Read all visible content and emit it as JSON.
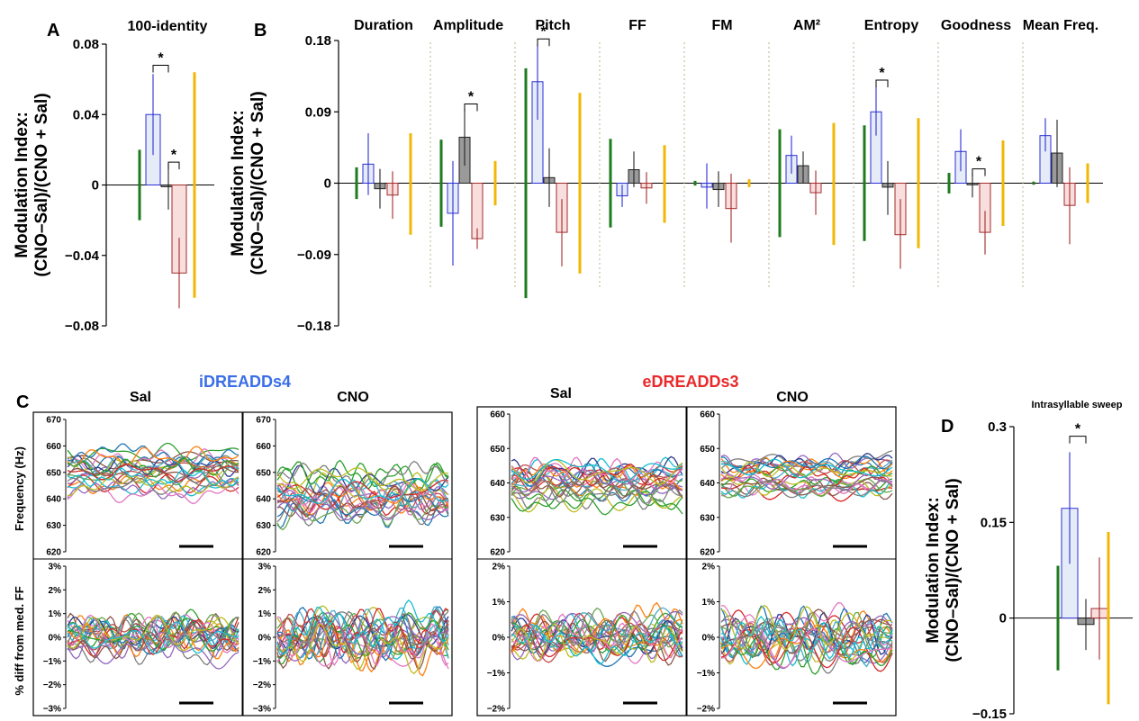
{
  "panel_labels": {
    "a": "A",
    "b": "B",
    "c": "C",
    "d": "D"
  },
  "colors": {
    "green": "#1e7b1e",
    "blue": "#2b2fd6",
    "blue_fill": "#e6ebf8",
    "gray": "#9a9a9a",
    "red": "#a32b2b",
    "red_fill": "#f9dede",
    "gold": "#f2b705",
    "ilabel": "#3a6ee8",
    "elabel": "#e82a2a"
  },
  "panel_c": {
    "i_title": "iDREADDs4",
    "e_title": "eDREADDs3",
    "sal": "Sal",
    "cno": "CNO",
    "row1_ylabel": "Frequency (Hz)",
    "row2_ylabel": "% diff from med. FF"
  },
  "chart_data": [
    {
      "id": "A",
      "type": "bar",
      "title": "100-identity",
      "ylabel": "Modulation Index:\n(CNO–Sal)/(CNO + Sal)",
      "ylim": [
        -0.08,
        0.08
      ],
      "ticks": [
        0.08,
        0.04,
        0,
        -0.04,
        -0.08
      ],
      "tick_labels": [
        "0.08",
        "0.04",
        "0",
        "−0.04",
        "−0.08"
      ],
      "groups": [
        {
          "name": "100-identity",
          "bars": [
            {
              "style": "green",
              "value": 0,
              "lo": -0.02,
              "hi": 0.02
            },
            {
              "style": "blue",
              "value": 0.04,
              "lo": 0.017,
              "hi": 0.063
            },
            {
              "style": "gray",
              "value": -0.001,
              "lo": -0.014,
              "hi": 0.012
            },
            {
              "style": "red",
              "value": -0.05,
              "lo": -0.07,
              "hi": -0.03
            },
            {
              "style": "gold",
              "value": 0,
              "lo": -0.064,
              "hi": 0.064
            }
          ],
          "sig": [
            {
              "from": 1,
              "to": 2,
              "h": 0.068
            },
            {
              "from": 2,
              "to": 3,
              "h": 0.013
            }
          ]
        }
      ]
    },
    {
      "id": "B",
      "type": "bar",
      "ylabel": "Modulation Index:\n(CNO–Sal)/(CNO + Sal)",
      "ylim": [
        -0.18,
        0.18
      ],
      "ticks": [
        0.18,
        0.09,
        0,
        -0.09,
        -0.18
      ],
      "tick_labels": [
        "0.18",
        "0.09",
        "0",
        "−0.09",
        "−0.18"
      ],
      "groups": [
        {
          "name": "Duration",
          "bars": [
            {
              "style": "green",
              "value": 0,
              "lo": -0.02,
              "hi": 0.02
            },
            {
              "style": "blue",
              "value": 0.024,
              "lo": -0.015,
              "hi": 0.063
            },
            {
              "style": "gray",
              "value": -0.007,
              "lo": -0.032,
              "hi": 0.018
            },
            {
              "style": "red",
              "value": -0.015,
              "lo": -0.045,
              "hi": 0.015
            },
            {
              "style": "gold",
              "value": 0,
              "lo": -0.065,
              "hi": 0.063
            }
          ],
          "sig": []
        },
        {
          "name": "Amplitude",
          "bars": [
            {
              "style": "green",
              "value": 0,
              "lo": -0.055,
              "hi": 0.055
            },
            {
              "style": "blue",
              "value": -0.038,
              "lo": -0.104,
              "hi": 0.028
            },
            {
              "style": "gray",
              "value": 0.058,
              "lo": 0.022,
              "hi": 0.094
            },
            {
              "style": "red",
              "value": -0.07,
              "lo": -0.083,
              "hi": -0.057
            },
            {
              "style": "gold",
              "value": 0,
              "lo": -0.028,
              "hi": 0.028
            }
          ],
          "sig": [
            {
              "from": 2,
              "to": 3,
              "h": 0.1
            }
          ]
        },
        {
          "name": "Pitch",
          "bars": [
            {
              "style": "green",
              "value": 0,
              "lo": -0.145,
              "hi": 0.145
            },
            {
              "style": "blue",
              "value": 0.128,
              "lo": 0.08,
              "hi": 0.175
            },
            {
              "style": "gray",
              "value": 0.007,
              "lo": -0.03,
              "hi": 0.044
            },
            {
              "style": "red",
              "value": -0.062,
              "lo": -0.105,
              "hi": -0.02
            },
            {
              "style": "gold",
              "value": 0,
              "lo": -0.114,
              "hi": 0.114
            }
          ],
          "sig": [
            {
              "from": 1,
              "to": 2,
              "h": 0.182
            }
          ]
        },
        {
          "name": "FF",
          "bars": [
            {
              "style": "green",
              "value": 0,
              "lo": -0.056,
              "hi": 0.056
            },
            {
              "style": "blue",
              "value": -0.016,
              "lo": -0.03,
              "hi": -0.002
            },
            {
              "style": "gray",
              "value": 0.017,
              "lo": -0.005,
              "hi": 0.04
            },
            {
              "style": "red",
              "value": -0.006,
              "lo": -0.026,
              "hi": 0.014
            },
            {
              "style": "gold",
              "value": 0,
              "lo": -0.05,
              "hi": 0.048
            }
          ],
          "sig": []
        },
        {
          "name": "FM",
          "bars": [
            {
              "style": "green",
              "value": 0,
              "lo": -0.003,
              "hi": 0.003
            },
            {
              "style": "blue",
              "value": -0.005,
              "lo": -0.032,
              "hi": 0.025
            },
            {
              "style": "gray",
              "value": -0.008,
              "lo": -0.03,
              "hi": 0.015
            },
            {
              "style": "red",
              "value": -0.032,
              "lo": -0.075,
              "hi": 0.012
            },
            {
              "style": "gold",
              "value": 0,
              "lo": -0.005,
              "hi": 0.005
            }
          ],
          "sig": []
        },
        {
          "name": "AM²",
          "bars": [
            {
              "style": "green",
              "value": 0,
              "lo": -0.068,
              "hi": 0.068
            },
            {
              "style": "blue",
              "value": 0.035,
              "lo": 0.012,
              "hi": 0.06
            },
            {
              "style": "gray",
              "value": 0.022,
              "lo": 0.0,
              "hi": 0.04
            },
            {
              "style": "red",
              "value": -0.012,
              "lo": -0.04,
              "hi": 0.016
            },
            {
              "style": "gold",
              "value": 0,
              "lo": -0.078,
              "hi": 0.076
            }
          ],
          "sig": []
        },
        {
          "name": "Entropy",
          "bars": [
            {
              "style": "green",
              "value": 0,
              "lo": -0.073,
              "hi": 0.073
            },
            {
              "style": "blue",
              "value": 0.09,
              "lo": 0.06,
              "hi": 0.122
            },
            {
              "style": "gray",
              "value": -0.005,
              "lo": -0.04,
              "hi": 0.028
            },
            {
              "style": "red",
              "value": -0.065,
              "lo": -0.108,
              "hi": -0.02
            },
            {
              "style": "gold",
              "value": 0,
              "lo": -0.082,
              "hi": 0.082
            }
          ],
          "sig": [
            {
              "from": 1,
              "to": 2,
              "h": 0.13
            }
          ]
        },
        {
          "name": "Goodness",
          "bars": [
            {
              "style": "green",
              "value": 0,
              "lo": -0.013,
              "hi": 0.013
            },
            {
              "style": "blue",
              "value": 0.04,
              "lo": 0.015,
              "hi": 0.068
            },
            {
              "style": "gray",
              "value": -0.002,
              "lo": -0.018,
              "hi": 0.012
            },
            {
              "style": "red",
              "value": -0.062,
              "lo": -0.09,
              "hi": -0.035
            },
            {
              "style": "gold",
              "value": 0,
              "lo": -0.054,
              "hi": 0.054
            }
          ],
          "sig": [
            {
              "from": 2,
              "to": 3,
              "h": 0.018
            }
          ]
        },
        {
          "name": "Mean Freq.",
          "bars": [
            {
              "style": "green",
              "value": 0,
              "lo": -0.002,
              "hi": 0.002
            },
            {
              "style": "blue",
              "value": 0.06,
              "lo": 0.04,
              "hi": 0.082
            },
            {
              "style": "gray",
              "value": 0.038,
              "lo": -0.005,
              "hi": 0.08
            },
            {
              "style": "red",
              "value": -0.028,
              "lo": -0.077,
              "hi": 0.02
            },
            {
              "style": "gold",
              "value": 0,
              "lo": -0.025,
              "hi": 0.025
            }
          ],
          "sig": []
        }
      ]
    },
    {
      "id": "D",
      "type": "bar",
      "title": "Intrasyllable sweep",
      "ylabel": "Modulation Index:\n(CNO–Sal)/(CNO + Sal)",
      "ylim": [
        -0.15,
        0.3
      ],
      "ticks": [
        0.3,
        0.15,
        0,
        -0.15
      ],
      "tick_labels": [
        "0.3",
        "0.15",
        "0",
        "−0.15"
      ],
      "groups": [
        {
          "name": "Intrasyllable sweep",
          "bars": [
            {
              "style": "green",
              "value": 0,
              "lo": -0.082,
              "hi": 0.082
            },
            {
              "style": "blue",
              "value": 0.172,
              "lo": 0.085,
              "hi": 0.26
            },
            {
              "style": "gray",
              "value": -0.01,
              "lo": -0.05,
              "hi": 0.03
            },
            {
              "style": "red",
              "value": 0.015,
              "lo": -0.065,
              "hi": 0.095
            },
            {
              "style": "gold",
              "value": 0,
              "lo": -0.135,
              "hi": 0.135
            }
          ],
          "sig": [
            {
              "from": 1,
              "to": 2,
              "h": 0.285
            }
          ]
        }
      ]
    },
    {
      "id": "C-i-sal-freq",
      "type": "line",
      "title": "Sal",
      "ylim": [
        620,
        670
      ],
      "ticks": [
        670,
        660,
        650,
        640,
        630,
        620
      ],
      "tick_labels": [
        "670",
        "660",
        "650",
        "640",
        "630",
        "620"
      ],
      "trace_center": 650,
      "trace_spread": 8,
      "trace_amp": 4,
      "n_traces": 24,
      "seed": 11
    },
    {
      "id": "C-i-cno-freq",
      "type": "line",
      "title": "CNO",
      "ylim": [
        620,
        670
      ],
      "ticks": [
        670,
        660,
        650,
        640,
        630,
        620
      ],
      "tick_labels": [
        "670",
        "660",
        "650",
        "640",
        "630",
        "620"
      ],
      "trace_center": 641,
      "trace_spread": 9,
      "trace_amp": 6,
      "n_traces": 24,
      "seed": 23
    },
    {
      "id": "C-i-sal-pct",
      "type": "line",
      "ylim": [
        -3,
        3
      ],
      "ticks": [
        3,
        2,
        1,
        0,
        -1,
        -2,
        -3
      ],
      "tick_labels": [
        "3%",
        "2%",
        "1%",
        "0%",
        "−1%",
        "−2%",
        "−3%"
      ],
      "trace_center": 0,
      "trace_spread": 0.35,
      "trace_amp": 0.8,
      "n_traces": 24,
      "seed": 37
    },
    {
      "id": "C-i-cno-pct",
      "type": "line",
      "ylim": [
        -3,
        3
      ],
      "ticks": [
        3,
        2,
        1,
        0,
        -1,
        -2,
        -3
      ],
      "tick_labels": [
        "3%",
        "2%",
        "1%",
        "0%",
        "−1%",
        "−2%",
        "−3%"
      ],
      "trace_center": 0,
      "trace_spread": 0.4,
      "trace_amp": 1.1,
      "n_traces": 24,
      "seed": 41
    },
    {
      "id": "C-e-sal-freq",
      "type": "line",
      "title": "Sal",
      "ylim": [
        620,
        660
      ],
      "ticks": [
        660,
        650,
        640,
        630,
        620
      ],
      "tick_labels": [
        "660",
        "650",
        "640",
        "630",
        "620"
      ],
      "trace_center": 640,
      "trace_spread": 5,
      "trace_amp": 4,
      "n_traces": 24,
      "seed": 53
    },
    {
      "id": "C-e-cno-freq",
      "type": "line",
      "title": "CNO",
      "ylim": [
        620,
        660
      ],
      "ticks": [
        660,
        650,
        640,
        630,
        620
      ],
      "tick_labels": [
        "660",
        "650",
        "640",
        "630",
        "620"
      ],
      "trace_center": 642,
      "trace_spread": 4,
      "trace_amp": 3,
      "n_traces": 24,
      "seed": 67
    },
    {
      "id": "C-e-sal-pct",
      "type": "line",
      "ylim": [
        -2,
        2
      ],
      "ticks": [
        2,
        1,
        0,
        -1,
        -2
      ],
      "tick_labels": [
        "2%",
        "1%",
        "0%",
        "−1%",
        "−2%"
      ],
      "trace_center": 0,
      "trace_spread": 0.35,
      "trace_amp": 0.6,
      "n_traces": 24,
      "seed": 71
    },
    {
      "id": "C-e-cno-pct",
      "type": "line",
      "ylim": [
        -2,
        2
      ],
      "ticks": [
        2,
        1,
        0,
        -1,
        -2
      ],
      "tick_labels": [
        "2%",
        "1%",
        "0%",
        "−1%",
        "−2%"
      ],
      "trace_center": 0,
      "trace_spread": 0.3,
      "trace_amp": 0.7,
      "n_traces": 24,
      "seed": 83
    }
  ]
}
